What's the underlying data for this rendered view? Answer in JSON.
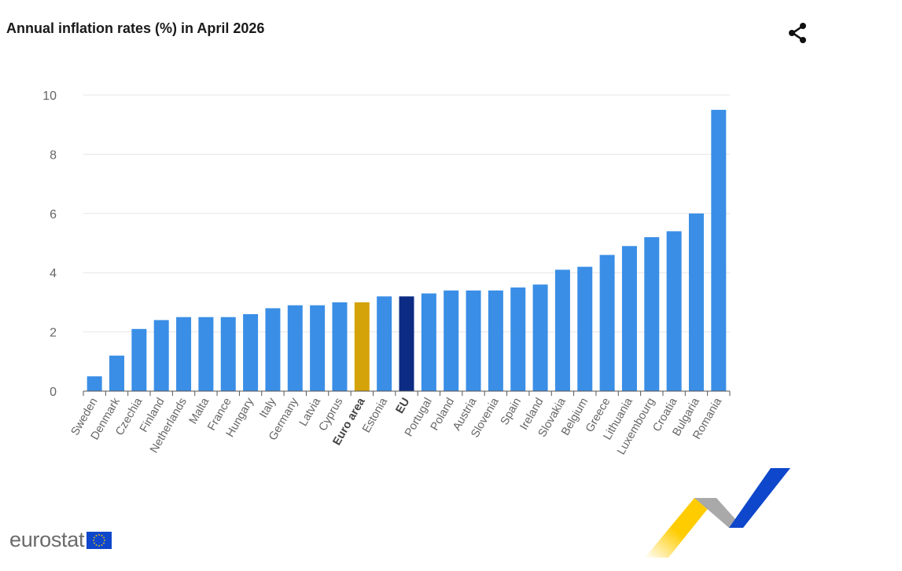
{
  "title": "Annual inflation rates (%) in April 2026",
  "share": {
    "icon": "share-icon"
  },
  "brand": {
    "name": "eurostat",
    "flag_icon": "eu-flag-icon"
  },
  "colors": {
    "bar": "#3a8ee6",
    "euro_area": "#d4a30a",
    "eu": "#0c2c84",
    "grid": "#e6e6e6",
    "axis_text": "#666666",
    "ribbon_yellow": "#ffcc00",
    "ribbon_grey": "#9a9a9a",
    "ribbon_blue": "#0e47cb"
  },
  "chart_data": {
    "type": "bar",
    "title": "Annual inflation rates (%) in April 2026",
    "xlabel": "",
    "ylabel": "",
    "ylim": [
      0,
      10
    ],
    "yticks": [
      0,
      2,
      4,
      6,
      8,
      10
    ],
    "grid": true,
    "legend": "none",
    "categories": [
      "Sweden",
      "Denmark",
      "Czechia",
      "Finland",
      "Netherlands",
      "Malta",
      "France",
      "Hungary",
      "Italy",
      "Germany",
      "Latvia",
      "Cyprus",
      "Euro area",
      "Estonia",
      "EU",
      "Portugal",
      "Poland",
      "Austria",
      "Slovenia",
      "Spain",
      "Ireland",
      "Slovakia",
      "Belgium",
      "Greece",
      "Lithuania",
      "Luxembourg",
      "Croatia",
      "Bulgaria",
      "Romania"
    ],
    "values": [
      0.5,
      1.2,
      2.1,
      2.4,
      2.5,
      2.5,
      2.5,
      2.6,
      2.8,
      2.9,
      2.9,
      3.0,
      3.0,
      3.2,
      3.2,
      3.3,
      3.4,
      3.4,
      3.4,
      3.5,
      3.6,
      4.1,
      4.2,
      4.6,
      4.9,
      5.2,
      5.4,
      6.0,
      9.5
    ],
    "highlighted": {
      "Euro area": "euro_area",
      "EU": "eu"
    },
    "bold_categories": [
      "Euro area",
      "EU"
    ]
  }
}
